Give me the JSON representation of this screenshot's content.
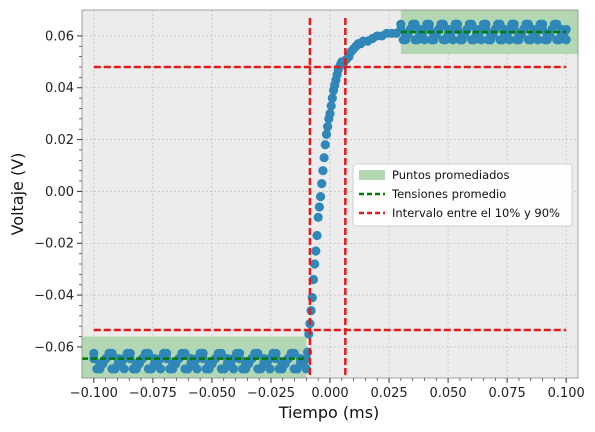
{
  "chart_data": {
    "type": "scatter",
    "xlabel": "Tiempo (ms)",
    "ylabel": "Voltaje (V)",
    "xlim": [
      -0.105,
      0.105
    ],
    "ylim": [
      -0.072,
      0.07
    ],
    "xticks": [
      -0.1,
      -0.075,
      -0.05,
      -0.025,
      0.0,
      0.025,
      0.05,
      0.075,
      0.1
    ],
    "xtick_labels": [
      "−0.100",
      "−0.075",
      "−0.050",
      "−0.025",
      "0.000",
      "0.025",
      "0.050",
      "0.075",
      "0.100"
    ],
    "yticks": [
      -0.06,
      -0.04,
      -0.02,
      0.0,
      0.02,
      0.04,
      0.06
    ],
    "ytick_labels": [
      "−0.06",
      "−0.04",
      "−0.02",
      "0.00",
      "0.02",
      "0.04",
      "0.06"
    ],
    "grid": true,
    "legend_position": "center-right",
    "legend": {
      "averaged_points": "Puntos promediados",
      "average_voltages": "Tensiones promedio",
      "interval": "Intervalo entre el 10% y 90%"
    },
    "colors": {
      "points": "#2f87b8",
      "averaged_region": "#b3d7b3",
      "average_line": "#007a00",
      "interval_line": "#e31a1c",
      "plot_background": "#ececec",
      "grid": "#b8b8b8"
    },
    "averaged_regions": [
      {
        "x": [
          -0.105,
          -0.01
        ],
        "y": [
          -0.072,
          -0.056
        ]
      },
      {
        "x": [
          0.03,
          0.105
        ],
        "y": [
          0.053,
          0.07
        ]
      }
    ],
    "average_lines": [
      {
        "x": [
          -0.105,
          -0.01
        ],
        "y": -0.0645
      },
      {
        "x": [
          0.03,
          0.1
        ],
        "y": 0.0615
      }
    ],
    "interval_lines": {
      "vertical_x": [
        -0.0085,
        0.0065
      ],
      "horizontal_y": [
        -0.0535,
        0.048
      ],
      "x_range": [
        -0.1,
        0.1
      ]
    },
    "series": {
      "low_plateau": {
        "x_start": -0.1,
        "x_end": -0.01,
        "levels": [
          -0.0625,
          -0.0645,
          -0.0665,
          -0.0685
        ]
      },
      "rise": [
        [
          -0.0095,
          -0.062
        ],
        [
          -0.009,
          -0.055
        ],
        [
          -0.0085,
          -0.051
        ],
        [
          -0.008,
          -0.046
        ],
        [
          -0.0075,
          -0.041
        ],
        [
          -0.007,
          -0.034
        ],
        [
          -0.0065,
          -0.028
        ],
        [
          -0.006,
          -0.023
        ],
        [
          -0.0055,
          -0.017
        ],
        [
          -0.005,
          -0.01
        ],
        [
          -0.0045,
          -0.006
        ],
        [
          -0.004,
          -0.002
        ],
        [
          -0.0035,
          0.003
        ],
        [
          -0.003,
          0.008
        ],
        [
          -0.0025,
          0.013
        ],
        [
          -0.002,
          0.018
        ],
        [
          -0.0015,
          0.022
        ],
        [
          -0.001,
          0.025
        ],
        [
          -0.0005,
          0.028
        ],
        [
          0.0,
          0.03
        ],
        [
          0.0005,
          0.033
        ],
        [
          0.001,
          0.036
        ],
        [
          0.0015,
          0.039
        ],
        [
          0.002,
          0.041
        ],
        [
          0.0025,
          0.043
        ],
        [
          0.003,
          0.045
        ],
        [
          0.0035,
          0.047
        ],
        [
          0.004,
          0.048
        ],
        [
          0.0045,
          0.049
        ],
        [
          0.005,
          0.05
        ],
        [
          0.0055,
          0.05
        ],
        [
          0.006,
          0.05
        ],
        [
          0.007,
          0.051
        ],
        [
          0.008,
          0.052
        ],
        [
          0.009,
          0.054
        ],
        [
          0.01,
          0.055
        ],
        [
          0.011,
          0.056
        ],
        [
          0.012,
          0.057
        ],
        [
          0.013,
          0.057
        ],
        [
          0.014,
          0.058
        ],
        [
          0.016,
          0.058
        ],
        [
          0.018,
          0.059
        ],
        [
          0.02,
          0.06
        ],
        [
          0.022,
          0.06
        ],
        [
          0.024,
          0.061
        ],
        [
          0.026,
          0.061
        ],
        [
          0.028,
          0.061
        ]
      ],
      "high_plateau": {
        "x_start": 0.03,
        "x_end": 0.1,
        "levels": [
          0.0645,
          0.0625,
          0.0605,
          0.0585
        ]
      }
    }
  }
}
